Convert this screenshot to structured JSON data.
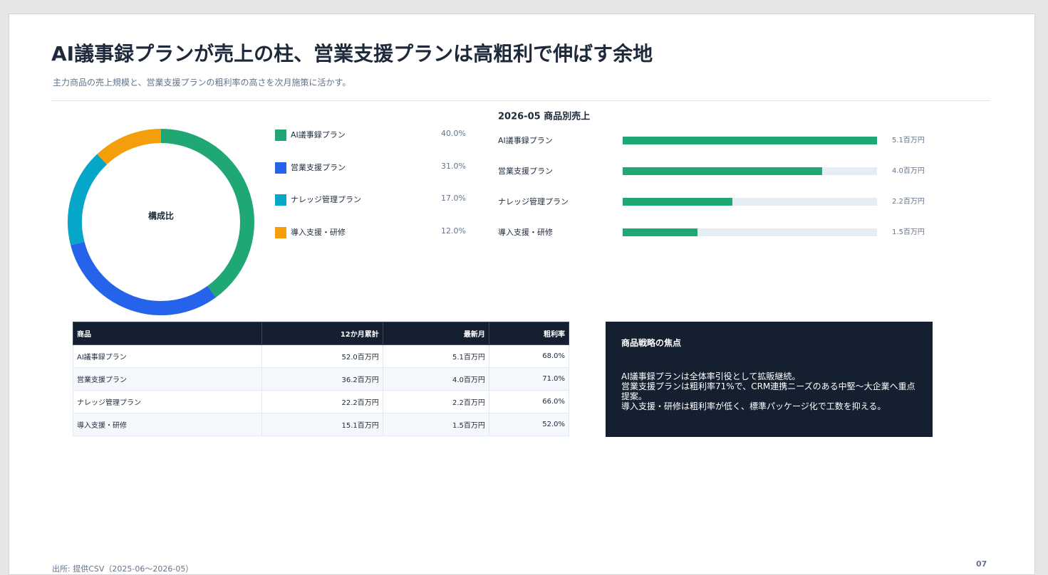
{
  "header": {
    "title": "AI議事録プランが売上の柱、営業支援プランは高粗利で伸ばす余地",
    "subtitle": "主力商品の売上規模と、営業支援プランの粗利率の高さを次月施策に活かす。"
  },
  "chart_data": [
    {
      "type": "donut",
      "center_label": "構成比",
      "categories": [
        "AI議事録プラン",
        "営業支援プラン",
        "ナレッジ管理プラン",
        "導入支援・研修"
      ],
      "values": [
        40,
        31,
        17,
        12
      ],
      "value_labels": [
        "40.0%",
        "31.0%",
        "17.0%",
        "12.0%"
      ],
      "colors": [
        "#1fa774",
        "#2563eb",
        "#06a6c8",
        "#f59e0b"
      ]
    },
    {
      "type": "hbar",
      "title": "2026-05 商品別売上",
      "categories": [
        "AI議事録プラン",
        "営業支援プラン",
        "ナレッジ管理プラン",
        "導入支援・研修"
      ],
      "values": [
        5.1,
        4.0,
        2.2,
        1.5
      ],
      "value_labels": [
        "5.1百万円",
        "4.0百万円",
        "2.2百万円",
        "1.5百万円"
      ],
      "xlim": [
        0,
        5.1
      ],
      "color": "#1fa774",
      "track_color": "#e6edf4"
    }
  ],
  "table": {
    "columns": [
      "商品",
      "12か月累計",
      "最新月",
      "粗利率"
    ],
    "rows": [
      [
        "AI議事録プラン",
        "52.0百万円",
        "5.1百万円",
        "68.0%"
      ],
      [
        "営業支援プラン",
        "36.2百万円",
        "4.0百万円",
        "71.0%"
      ],
      [
        "ナレッジ管理プラン",
        "22.2百万円",
        "2.2百万円",
        "66.0%"
      ],
      [
        "導入支援・研修",
        "15.1百万円",
        "1.5百万円",
        "52.0%"
      ]
    ]
  },
  "note": {
    "title": "商品戦略の焦点",
    "lines": [
      "AI議事録プランは全体率引役として拡販継続。",
      "営業支援プランは粗利率71%で、CRM連携ニーズのある中堅〜大企業へ重点提案。",
      "導入支援・研修は粗利率が低く、標準パッケージ化で工数を抑える。"
    ]
  },
  "footer": {
    "source": "出所: 提供CSV（2025-06〜2026-05）",
    "page": "07"
  }
}
